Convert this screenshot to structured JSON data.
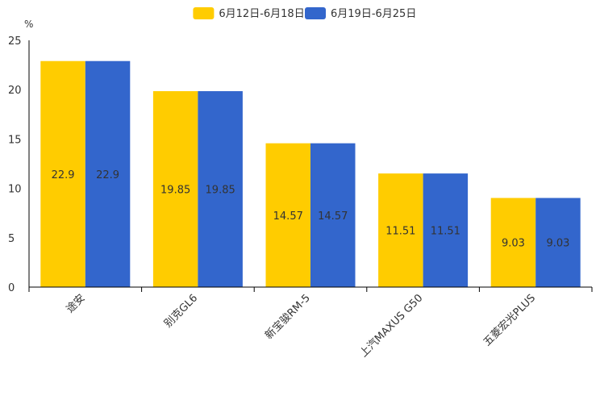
{
  "chart_data": {
    "type": "bar",
    "categories": [
      "途安",
      "别克GL6",
      "新宝骏RM-5",
      "上汽MAXUS G50",
      "五菱宏光PLUS"
    ],
    "series": [
      {
        "name": "6月12日-6月18日",
        "values": [
          22.9,
          19.85,
          14.57,
          11.51,
          9.03
        ],
        "labels": [
          "22.9",
          "19.85",
          "14.57",
          "11.51",
          "9.03"
        ],
        "color": "#ffcc00"
      },
      {
        "name": "6月19日-6月25日",
        "values": [
          22.9,
          19.85,
          14.57,
          11.51,
          9.03
        ],
        "labels": [
          "22.9",
          "19.85",
          "14.57",
          "11.51",
          "9.03"
        ],
        "color": "#3366cc"
      }
    ],
    "ylabel": "%",
    "ylim": [
      0,
      25
    ],
    "yticks": [
      0,
      5,
      10,
      15,
      20,
      25
    ],
    "ytick_labels": [
      "0",
      "5",
      "10",
      "15",
      "20",
      "25"
    ],
    "legend": "top-center",
    "grid": false
  }
}
